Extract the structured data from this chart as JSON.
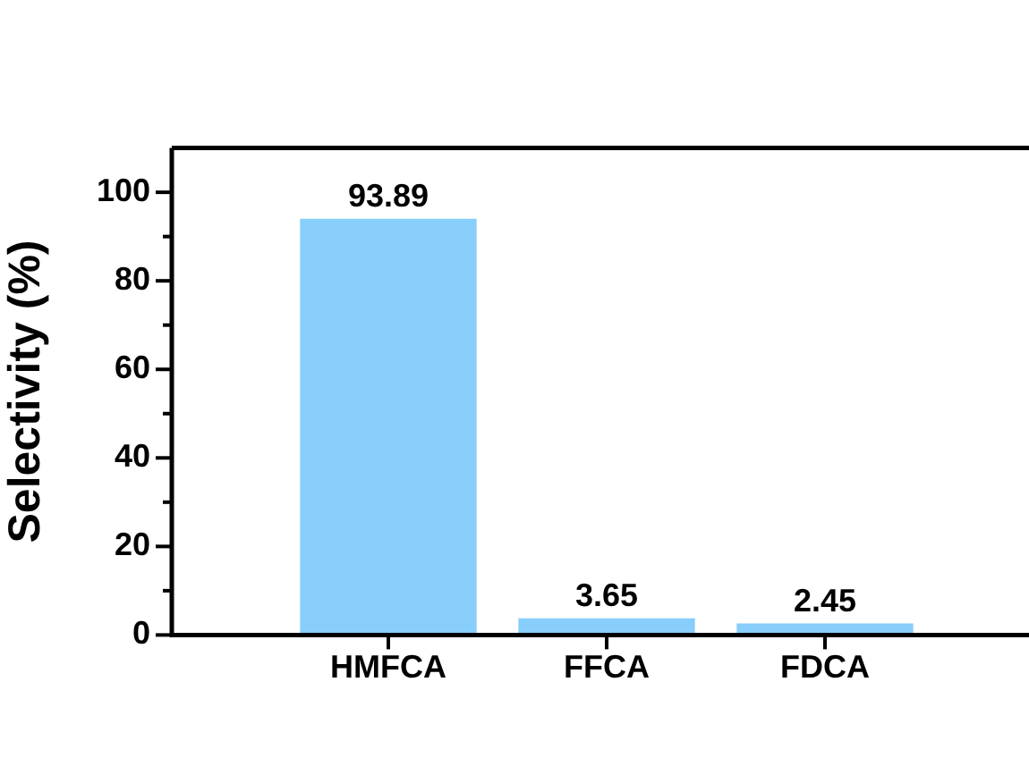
{
  "chart_data": {
    "type": "bar",
    "ylabel": "Selectivity (%)",
    "categories": [
      "HMFCA",
      "FFCA",
      "FDCA"
    ],
    "values": [
      93.89,
      3.65,
      2.45
    ],
    "color": "#87cefa",
    "ylim": [
      0,
      110
    ],
    "yticks": [
      0,
      {
        "value": 10,
        "label": null
      },
      20,
      {
        "value": 30,
        "label": null
      },
      40,
      {
        "value": 50,
        "label": null
      },
      60,
      {
        "value": 70,
        "label": null
      },
      80,
      {
        "value": 90,
        "label": null
      },
      100
    ],
    "data_labels": true,
    "grid": false,
    "legend": false
  }
}
